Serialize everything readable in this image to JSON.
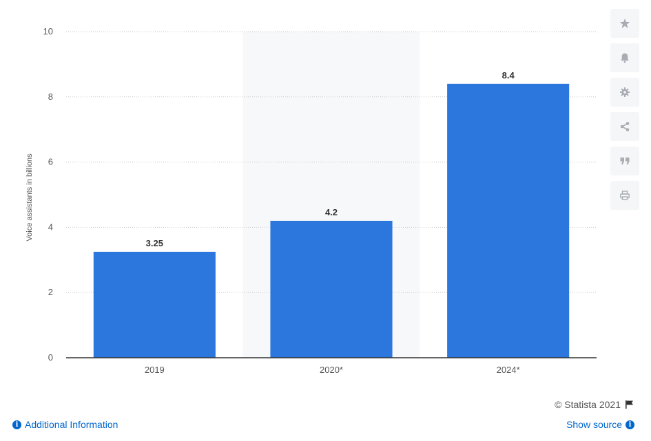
{
  "chart_data": {
    "type": "bar",
    "categories": [
      "2019",
      "2020*",
      "2024*"
    ],
    "values": [
      3.25,
      4.2,
      8.4
    ],
    "value_labels": [
      "3.25",
      "4.2",
      "8.4"
    ],
    "title": "",
    "xlabel": "",
    "ylabel": "Voice assistants in billions",
    "ylim": [
      0,
      10
    ],
    "yticks": [
      0,
      2,
      4,
      6,
      8,
      10
    ],
    "grid": "horizontal-dotted",
    "highlighted_category": "2020*",
    "colors": {
      "bar": "#2c77dd",
      "highlight_band": "#f7f8fa",
      "grid": "#c7c7c7",
      "axis": "#333333"
    }
  },
  "toolbar": {
    "buttons": [
      {
        "name": "favorite-button",
        "icon": "star-icon"
      },
      {
        "name": "notification-button",
        "icon": "bell-icon"
      },
      {
        "name": "settings-button",
        "icon": "gear-icon"
      },
      {
        "name": "share-button",
        "icon": "share-icon"
      },
      {
        "name": "cite-button",
        "icon": "quote-icon"
      },
      {
        "name": "print-button",
        "icon": "print-icon"
      }
    ],
    "icon_color": "#a9acb3"
  },
  "footer": {
    "copyright": "© Statista 2021",
    "additional_info": "Additional Information",
    "show_source": "Show source"
  }
}
